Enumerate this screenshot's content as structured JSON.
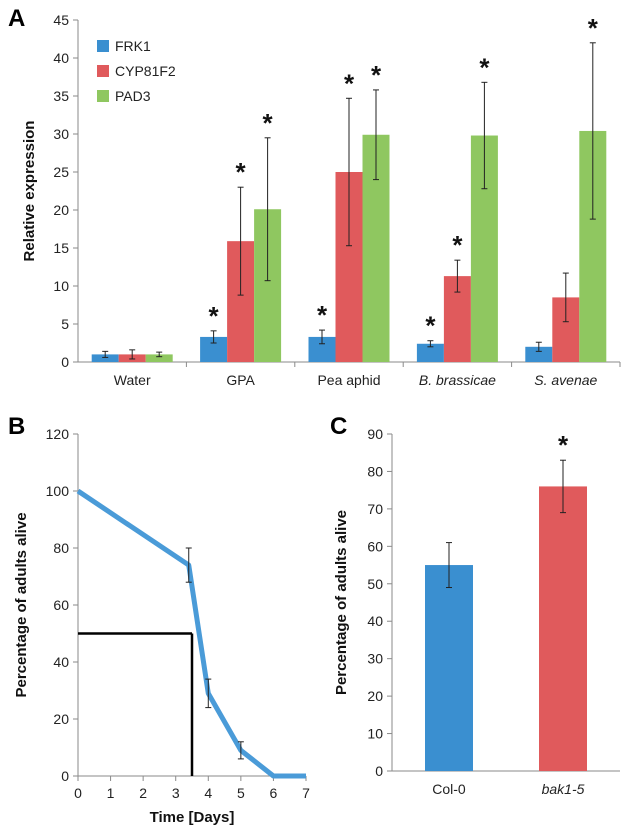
{
  "colors": {
    "blue": "#3a8fd0",
    "red": "#e05a5c",
    "green": "#8fc760",
    "line": "#4a9bd8",
    "axis": "#8a8a8a",
    "black": "#000000"
  },
  "chart_data": [
    {
      "panel": "A",
      "type": "bar",
      "ylabel": "Relative expression",
      "ylim": [
        0,
        45
      ],
      "yticks": [
        0,
        5,
        10,
        15,
        20,
        25,
        30,
        35,
        40,
        45
      ],
      "categories": [
        "Water",
        "GPA",
        "Pea aphid",
        "B. brassicae",
        "S. avenae"
      ],
      "categories_italic": [
        false,
        false,
        false,
        true,
        true
      ],
      "legend_position": "top-left",
      "series": [
        {
          "name": "FRK1",
          "color": "blue",
          "values": [
            1.0,
            3.3,
            3.3,
            2.4,
            2.0
          ],
          "errors": [
            0.4,
            0.8,
            0.9,
            0.4,
            0.6
          ],
          "significant": [
            false,
            true,
            true,
            true,
            false
          ]
        },
        {
          "name": "CYP81F2",
          "color": "red",
          "values": [
            1.0,
            15.9,
            25.0,
            11.3,
            8.5
          ],
          "errors": [
            0.6,
            7.1,
            9.7,
            2.1,
            3.2
          ],
          "significant": [
            false,
            true,
            true,
            true,
            false
          ]
        },
        {
          "name": "PAD3",
          "color": "green",
          "values": [
            1.0,
            20.1,
            29.9,
            29.8,
            30.4
          ],
          "errors": [
            0.3,
            9.4,
            5.9,
            7.0,
            11.6
          ],
          "significant": [
            false,
            true,
            true,
            true,
            true
          ]
        }
      ],
      "significance_marker": "*"
    },
    {
      "panel": "B",
      "type": "line",
      "xlabel": "Time [Days]",
      "ylabel": "Percentage of adults alive",
      "xlim": [
        0,
        7
      ],
      "ylim": [
        0,
        120
      ],
      "xticks": [
        0,
        1,
        2,
        3,
        4,
        5,
        6,
        7
      ],
      "yticks": [
        0,
        20,
        40,
        60,
        80,
        100,
        120
      ],
      "series": [
        {
          "color": "line",
          "x": [
            0,
            3.4,
            4,
            5,
            6,
            7
          ],
          "y": [
            100,
            74,
            29,
            9,
            0,
            0
          ],
          "errors": [
            0,
            6,
            5,
            3,
            0,
            0
          ]
        }
      ],
      "reference_lines": {
        "y": 50,
        "x": 3.5
      }
    },
    {
      "panel": "C",
      "type": "bar",
      "ylabel": "Percentage of adults alive",
      "ylim": [
        0,
        90
      ],
      "yticks": [
        0,
        10,
        20,
        30,
        40,
        50,
        60,
        70,
        80,
        90
      ],
      "categories": [
        "Col-0",
        "bak1-5"
      ],
      "categories_italic": [
        false,
        true
      ],
      "values": [
        55,
        76
      ],
      "errors": [
        6,
        7
      ],
      "colors": [
        "blue",
        "red"
      ],
      "significant": [
        false,
        true
      ],
      "significance_marker": "*"
    }
  ]
}
